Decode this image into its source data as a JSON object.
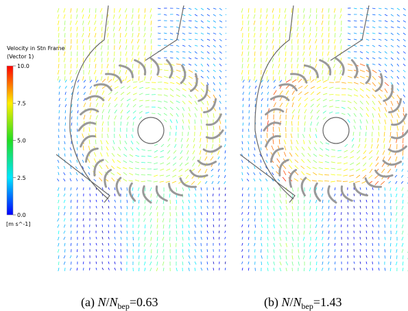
{
  "legend": {
    "title": "Velocity in Stn Frame",
    "subtitle": "(Vector 1)",
    "range": [
      0,
      10
    ],
    "ticks": [
      {
        "value": 10,
        "label": "10.0"
      },
      {
        "value": 7.5,
        "label": "7.5"
      },
      {
        "value": 5,
        "label": "5.0"
      },
      {
        "value": 2.5,
        "label": "2.5"
      },
      {
        "value": 0,
        "label": "0.0"
      }
    ],
    "unit": "[m s^-1]"
  },
  "panels": [
    {
      "caption": [
        "(a)",
        "N",
        "/",
        "N",
        "bep",
        "=0.63"
      ]
    },
    {
      "caption": [
        "(b)",
        "N",
        "/",
        "N",
        "bep",
        "=1.43"
      ]
    }
  ]
}
